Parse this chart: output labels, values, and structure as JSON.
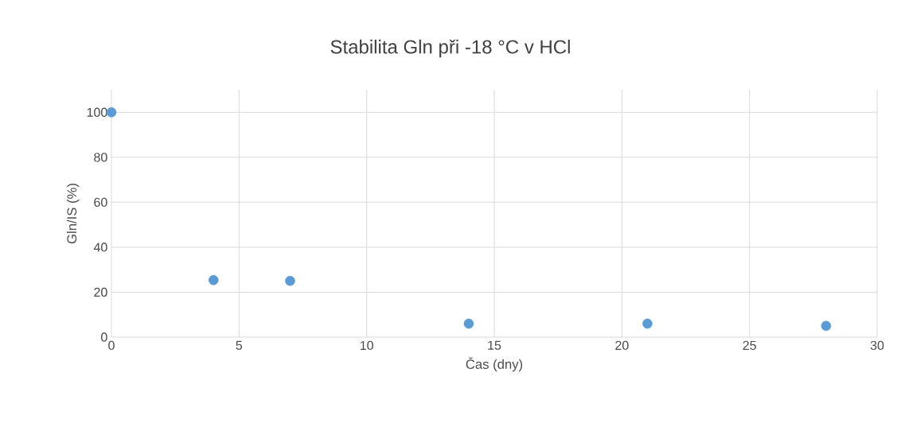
{
  "chart_data": {
    "type": "scatter",
    "title": "Stabilita Gln při -18 °C v HCl",
    "xlabel": "Čas (dny)",
    "ylabel": "Gln/IS (%)",
    "x": [
      0,
      4,
      7,
      14,
      21,
      28
    ],
    "series": [
      {
        "color": "#5b9bd5",
        "values": [
          100,
          25.4,
          25,
          6,
          6,
          5
        ]
      }
    ],
    "xlim": [
      0,
      30
    ],
    "xticks": [
      0,
      5,
      10,
      15,
      20,
      25,
      30
    ],
    "ylim": [
      0,
      110
    ],
    "yticks": [
      0,
      20,
      40,
      60,
      80,
      100
    ],
    "grid": true,
    "marker": "circle"
  }
}
